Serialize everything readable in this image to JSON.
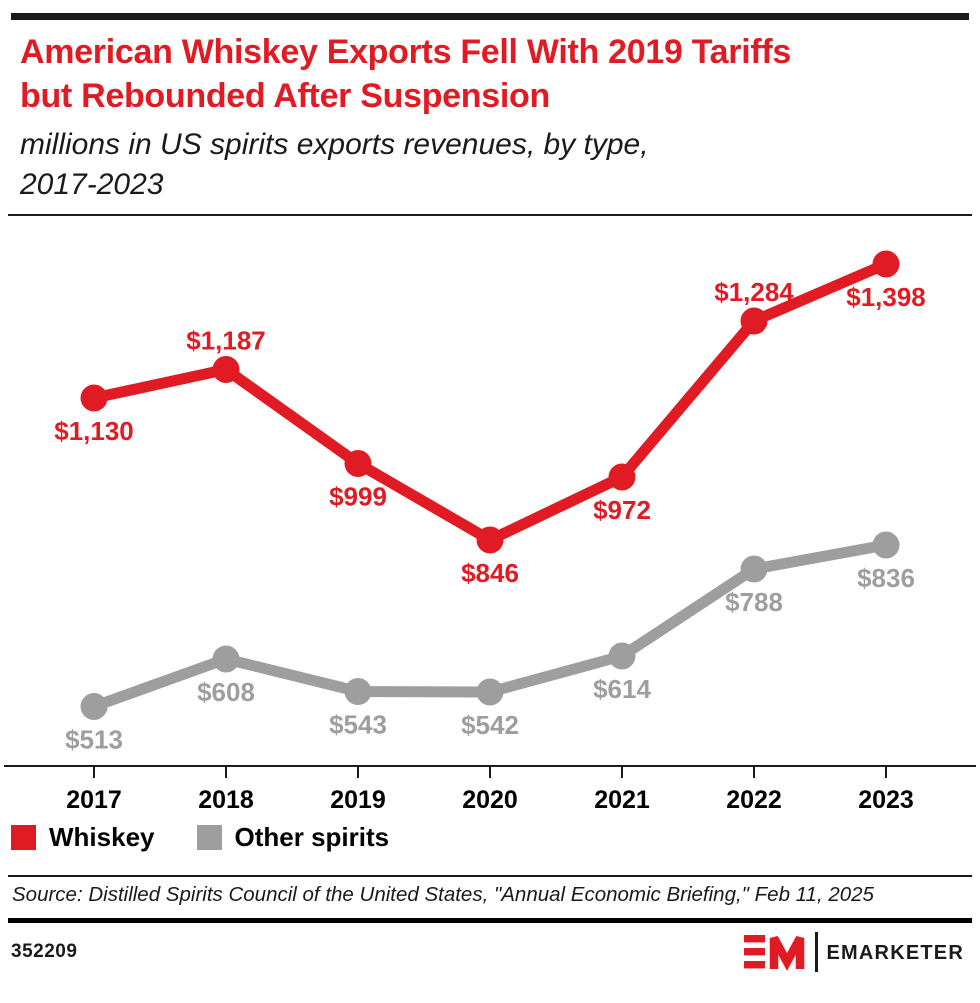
{
  "header": {
    "title_lines": [
      "American Whiskey Exports Fell With 2019 Tariffs",
      "but Rebounded After Suspension"
    ],
    "subtitle_lines": [
      "millions in US spirits exports revenues, by type,",
      "2017-2023"
    ]
  },
  "chart_data": {
    "type": "line",
    "title": "American Whiskey Exports Fell With 2019 Tariffs but Rebounded After Suspension",
    "subtitle": "millions in US spirits exports revenues, by type, 2017-2023",
    "categories": [
      "2017",
      "2018",
      "2019",
      "2020",
      "2021",
      "2022",
      "2023"
    ],
    "series": [
      {
        "name": "Whiskey",
        "color": "#e11b23",
        "values": [
          1130,
          1187,
          999,
          846,
          972,
          1284,
          1398
        ],
        "labels": [
          "$1,130",
          "$1,187",
          "$999",
          "$846",
          "$972",
          "$1,284",
          "$1,398"
        ],
        "label_positions": [
          "below",
          "above",
          "below",
          "below",
          "below",
          "above",
          "below"
        ]
      },
      {
        "name": "Other spirits",
        "color": "#9e9e9e",
        "values": [
          513,
          608,
          543,
          542,
          614,
          788,
          836
        ],
        "labels": [
          "$513",
          "$608",
          "$543",
          "$542",
          "$614",
          "$788",
          "$836"
        ],
        "label_positions": [
          "below",
          "below",
          "below",
          "below",
          "below",
          "below",
          "below"
        ]
      }
    ],
    "xlabel": "",
    "ylabel": "",
    "ylim": [
      394,
      1494
    ],
    "grid": false,
    "y_axis_visible": false,
    "legend_position": "bottom",
    "value_unit": "millions USD",
    "axis_color": "#1a1a1a"
  },
  "source": {
    "text": "Source: Distilled Spirits Council of the United States, \"Annual Economic Briefing,\" Feb 11, 2025"
  },
  "footer": {
    "chart_id": "352209",
    "brand": "EMARKETER"
  }
}
